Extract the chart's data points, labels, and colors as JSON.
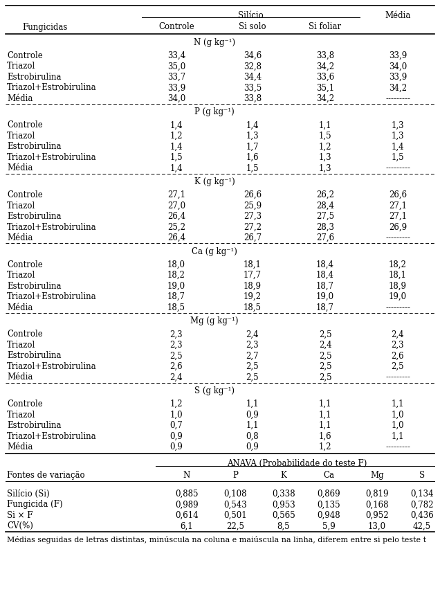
{
  "silicio_cols": [
    "Controle",
    "Si solo",
    "Si foliar"
  ],
  "fungicidas_rows": [
    "Controle",
    "Triazol",
    "Estrobirulina",
    "Triazol+Estrobirulina",
    "Média"
  ],
  "sections": [
    {
      "label": "N (g kg⁻¹)",
      "data": [
        [
          "33,4",
          "34,6",
          "33,8",
          "33,9"
        ],
        [
          "35,0",
          "32,8",
          "34,2",
          "34,0"
        ],
        [
          "33,7",
          "34,4",
          "33,6",
          "33,9"
        ],
        [
          "33,9",
          "33,5",
          "35,1",
          "34,2"
        ],
        [
          "34,0",
          "33,8",
          "34,2",
          "---------"
        ]
      ]
    },
    {
      "label": "P (g kg⁻¹)",
      "data": [
        [
          "1,4",
          "1,4",
          "1,1",
          "1,3"
        ],
        [
          "1,2",
          "1,3",
          "1,5",
          "1,3"
        ],
        [
          "1,4",
          "1,7",
          "1,2",
          "1,4"
        ],
        [
          "1,5",
          "1,6",
          "1,3",
          "1,5"
        ],
        [
          "1,4",
          "1,5",
          "1,3",
          "---------"
        ]
      ]
    },
    {
      "label": "K (g kg⁻¹)",
      "data": [
        [
          "27,1",
          "26,6",
          "26,2",
          "26,6"
        ],
        [
          "27,0",
          "25,9",
          "28,4",
          "27,1"
        ],
        [
          "26,4",
          "27,3",
          "27,5",
          "27,1"
        ],
        [
          "25,2",
          "27,2",
          "28,3",
          "26,9"
        ],
        [
          "26,4",
          "26,7",
          "27,6",
          "---------"
        ]
      ]
    },
    {
      "label": "Ca (g kg⁻¹)",
      "data": [
        [
          "18,0",
          "18,1",
          "18,4",
          "18,2"
        ],
        [
          "18,2",
          "17,7",
          "18,4",
          "18,1"
        ],
        [
          "19,0",
          "18,9",
          "18,7",
          "18,9"
        ],
        [
          "18,7",
          "19,2",
          "19,0",
          "19,0"
        ],
        [
          "18,5",
          "18,5",
          "18,7",
          "---------"
        ]
      ]
    },
    {
      "label": "Mg (g kg⁻¹)",
      "data": [
        [
          "2,3",
          "2,4",
          "2,5",
          "2,4"
        ],
        [
          "2,3",
          "2,3",
          "2,4",
          "2,3"
        ],
        [
          "2,5",
          "2,7",
          "2,5",
          "2,6"
        ],
        [
          "2,6",
          "2,5",
          "2,5",
          "2,5"
        ],
        [
          "2,4",
          "2,5",
          "2,5",
          "---------"
        ]
      ]
    },
    {
      "label": "S (g kg⁻¹)",
      "data": [
        [
          "1,2",
          "1,1",
          "1,1",
          "1,1"
        ],
        [
          "1,0",
          "0,9",
          "1,1",
          "1,0"
        ],
        [
          "0,7",
          "1,1",
          "1,1",
          "1,0"
        ],
        [
          "0,9",
          "0,8",
          "1,6",
          "1,1"
        ],
        [
          "0,9",
          "0,9",
          "1,2",
          "---------"
        ]
      ]
    }
  ],
  "anava_header": "ANAVA (Probabilidade do teste F)",
  "anava_cols": [
    "N",
    "P",
    "K",
    "Ca",
    "Mg",
    "S"
  ],
  "anava_row_labels": [
    "Silício (Si)",
    "Fungicida (F)",
    "Si × F",
    "CV(%)"
  ],
  "anava_data": [
    [
      "0,885",
      "0,108",
      "0,338",
      "0,869",
      "0,819",
      "0,134"
    ],
    [
      "0,989",
      "0,543",
      "0,953",
      "0,135",
      "0,168",
      "0,782"
    ],
    [
      "0,614",
      "0,501",
      "0,565",
      "0,948",
      "0,952",
      "0,436"
    ],
    [
      "6,1",
      "22,5",
      "8,5",
      "5,9",
      "13,0",
      "42,5"
    ]
  ],
  "footer": "Médias seguidas de letras distintas, minúscula na coluna e maiúscula na linha, diferem entre si pelo teste t",
  "bg_color": "#ffffff",
  "text_color": "#000000",
  "font_size": 8.5
}
